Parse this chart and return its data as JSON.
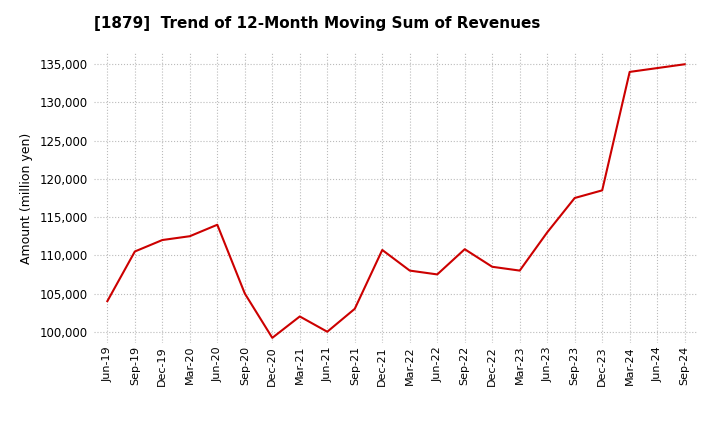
{
  "title": "[1879]  Trend of 12-Month Moving Sum of Revenues",
  "ylabel": "Amount (million yen)",
  "line_color": "#CC0000",
  "background_color": "#FFFFFF",
  "grid_color": "#BBBBBB",
  "ylim": [
    98500,
    136500
  ],
  "yticks": [
    100000,
    105000,
    110000,
    115000,
    120000,
    125000,
    130000,
    135000
  ],
  "x_labels": [
    "Jun-19",
    "Sep-19",
    "Dec-19",
    "Mar-20",
    "Jun-20",
    "Sep-20",
    "Dec-20",
    "Mar-21",
    "Jun-21",
    "Sep-21",
    "Dec-21",
    "Mar-22",
    "Jun-22",
    "Sep-22",
    "Dec-22",
    "Mar-23",
    "Jun-23",
    "Sep-23",
    "Dec-23",
    "Mar-24",
    "Jun-24",
    "Sep-24"
  ],
  "values": [
    104000,
    110500,
    112000,
    112500,
    114000,
    105000,
    99200,
    102000,
    100000,
    103000,
    110700,
    108000,
    107500,
    110800,
    108500,
    108000,
    113000,
    117500,
    118500,
    134000,
    134500,
    135000
  ]
}
